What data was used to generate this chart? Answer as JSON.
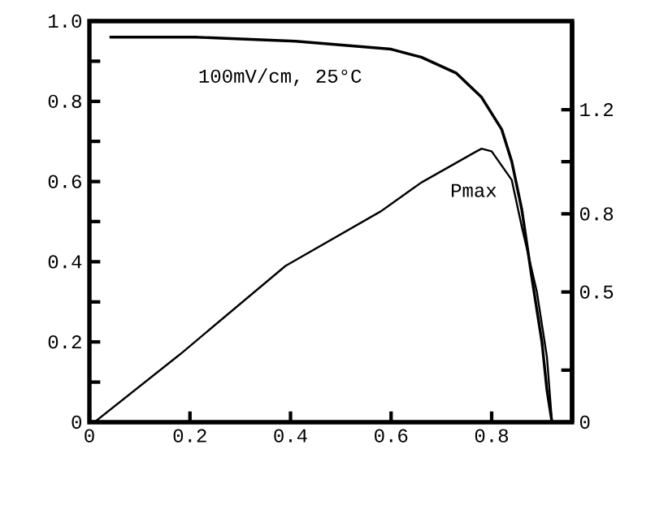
{
  "chart_data": {
    "type": "line",
    "annotations": [
      "100mV/cm, 25°C",
      "Pmax"
    ],
    "series": [
      {
        "color": "#000000",
        "x": [
          0.04,
          0.21,
          0.41,
          0.6,
          0.66,
          0.73,
          0.78,
          0.82,
          0.84,
          0.86,
          0.88,
          0.9,
          0.91,
          0.92
        ],
        "values": [
          0.96,
          0.96,
          0.95,
          0.93,
          0.91,
          0.87,
          0.81,
          0.73,
          0.65,
          0.53,
          0.36,
          0.2,
          0.08,
          0
        ]
      },
      {
        "color": "#000000",
        "axis": "y2",
        "x": [
          0.01,
          0.18,
          0.39,
          0.58,
          0.66,
          0.77,
          0.78,
          0.8,
          0.84,
          0.86,
          0.89,
          0.91,
          0.92
        ],
        "values": [
          0,
          0.26,
          0.6,
          0.81,
          0.92,
          1.04,
          1.05,
          1.04,
          0.93,
          0.75,
          0.5,
          0.25,
          0
        ]
      }
    ],
    "xlim": [
      0,
      0.96
    ],
    "xticks": [
      0,
      0.2,
      0.4,
      0.6,
      0.8
    ],
    "ylim": [
      0,
      1.0
    ],
    "yticks": [
      0,
      {
        "value": 0.1,
        "label": null
      },
      0.2,
      {
        "value": 0.3,
        "label": null
      },
      0.4,
      {
        "value": 0.5,
        "label": null
      },
      0.6,
      {
        "value": 0.7,
        "label": null
      },
      0.8,
      {
        "value": 0.9,
        "label": null
      },
      {
        "value": 1.0,
        "label": "1.0"
      }
    ],
    "y2lim": [
      0,
      1.54
    ],
    "y2ticks": [
      0,
      {
        "value": 0.2,
        "label": null
      },
      0.5,
      0.8,
      {
        "value": 1.0,
        "label": null
      },
      1.2
    ],
    "grid": false,
    "legend": false,
    "marker": "none",
    "line_style": "solid"
  }
}
